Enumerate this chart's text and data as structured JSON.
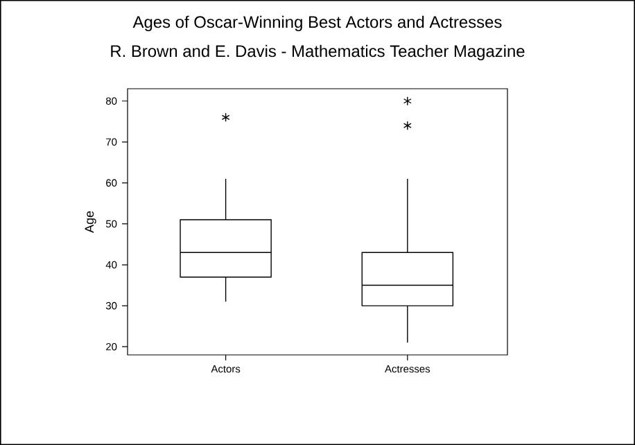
{
  "chart_data": {
    "type": "box",
    "title": "Ages of Oscar-Winning Best Actors and Actresses",
    "subtitle": "R. Brown and E. Davis - Mathematics Teacher Magazine",
    "ylabel": "Age",
    "categories": [
      "Actors",
      "Actresses"
    ],
    "boxes": [
      {
        "low": 31,
        "q1": 37,
        "median": 43,
        "q3": 51,
        "high": 61,
        "outliers": [
          76
        ]
      },
      {
        "low": 21,
        "q1": 30,
        "median": 35,
        "q3": 43,
        "high": 61,
        "outliers": [
          74,
          80
        ]
      }
    ],
    "ylim": [
      18,
      83
    ],
    "yticks": [
      20,
      30,
      40,
      50,
      60,
      70,
      80
    ],
    "marker": "star"
  }
}
